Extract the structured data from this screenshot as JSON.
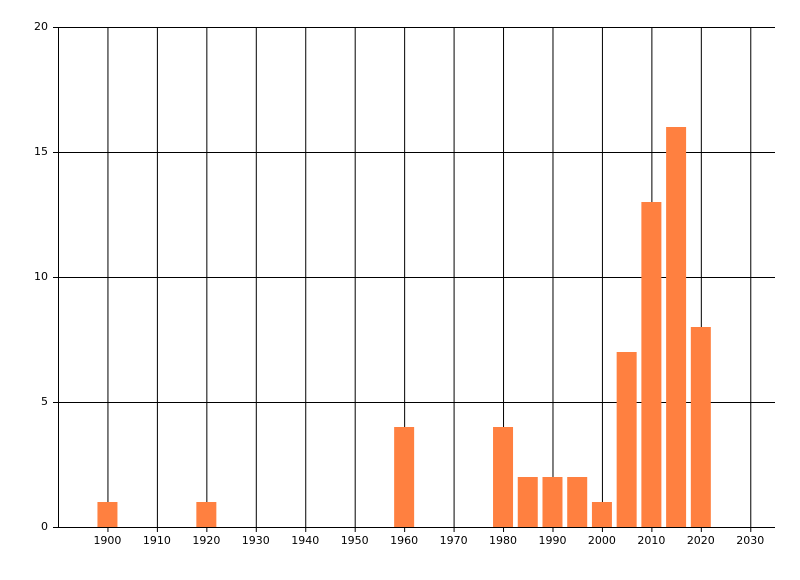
{
  "chart_data": {
    "type": "bar",
    "x": [
      1900,
      1920,
      1960,
      1980,
      1985,
      1990,
      1995,
      2000,
      2005,
      2010,
      2015,
      2020
    ],
    "values": [
      1,
      1,
      4,
      4,
      2,
      2,
      2,
      1,
      7,
      13,
      16,
      8
    ],
    "color": "#ff8040",
    "xlim": [
      1890,
      2035
    ],
    "xticks": [
      1900,
      1910,
      1920,
      1930,
      1940,
      1950,
      1960,
      1970,
      1980,
      1990,
      2000,
      2010,
      2020,
      2030
    ],
    "ylim": [
      0,
      20
    ],
    "yticks": [
      0,
      5,
      10,
      15,
      20
    ],
    "grid": true
  }
}
